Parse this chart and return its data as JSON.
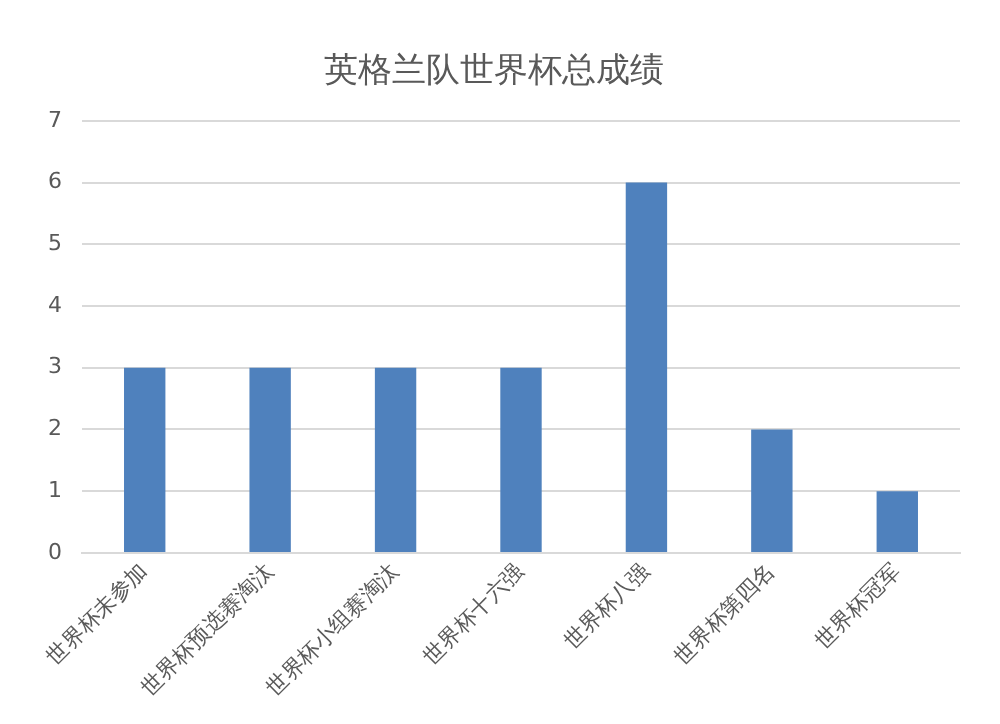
{
  "chart_data": {
    "type": "bar",
    "title": "英格兰队世界杯总成绩",
    "categories": [
      "世界杯未参加",
      "世界杯预选赛淘汰",
      "世界杯小组赛淘汰",
      "世界杯十六强",
      "世界杯八强",
      "世界杯第四名",
      "世界杯冠军"
    ],
    "values": [
      3,
      3,
      3,
      3,
      6,
      2,
      1
    ],
    "color": "#4f81bd",
    "ylim": [
      0,
      7
    ],
    "yticks": [
      0,
      1,
      2,
      3,
      4,
      5,
      6,
      7
    ],
    "grid": "y"
  }
}
